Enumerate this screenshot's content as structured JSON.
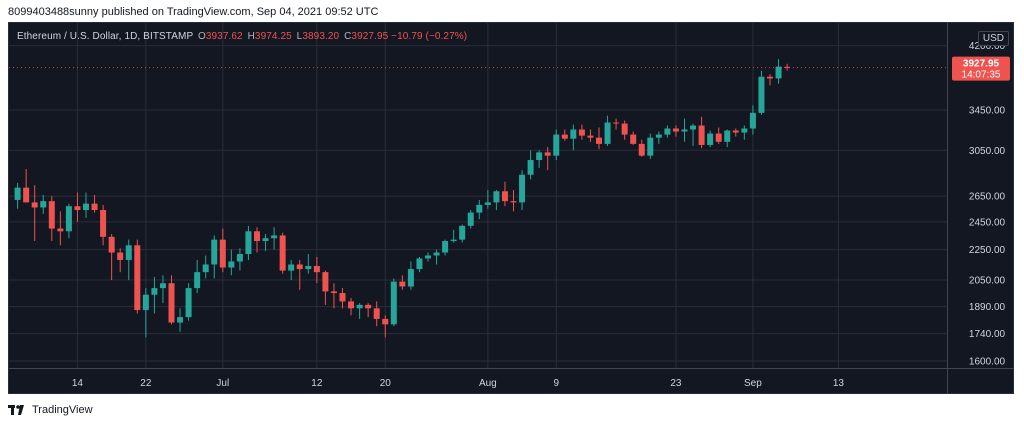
{
  "header": {
    "text": "8099403488sunny published on TradingView.com, Sep 04, 2021 09:52 UTC"
  },
  "legend": {
    "symbol": "Ethereum / U.S. Dollar, 1D, BITSTAMP",
    "o_label": "O",
    "o": "3937.62",
    "h_label": "H",
    "h": "3974.25",
    "l_label": "L",
    "l": "3893.20",
    "c_label": "C",
    "c": "3927.95",
    "change": "−10.79 (−0.27%)"
  },
  "currency": "USD",
  "price_tag": {
    "price": "3927.95",
    "countdown": "14:07:35"
  },
  "footer": {
    "brand": "TradingView"
  },
  "colors": {
    "up": "#26a69a",
    "down": "#ef5350",
    "background": "#131722",
    "grid": "#2a2e39",
    "text": "#d1d4dc"
  },
  "chart_data": {
    "type": "candlestick",
    "scale": "log",
    "y_ticks": [
      1600,
      1740,
      1890,
      2050,
      2250,
      2450,
      2650,
      3050,
      3450,
      4200
    ],
    "y_tick_labels": [
      "1600.00",
      "1740.00",
      "1890.00",
      "2050.00",
      "2250.00",
      "2450.00",
      "2650.00",
      "3050.00",
      "3450.00",
      "4200.00"
    ],
    "x_ticks": [
      {
        "label": "14",
        "index": 7
      },
      {
        "label": "22",
        "index": 15
      },
      {
        "label": "Jul",
        "index": 24
      },
      {
        "label": "12",
        "index": 35
      },
      {
        "label": "20",
        "index": 43
      },
      {
        "label": "Aug",
        "index": 55
      },
      {
        "label": "9",
        "index": 63
      },
      {
        "label": "23",
        "index": 77
      },
      {
        "label": "Sep",
        "index": 86
      },
      {
        "label": "13",
        "index": 96
      }
    ],
    "candles": [
      [
        2620,
        2760,
        2550,
        2720
      ],
      [
        2720,
        2880,
        2600,
        2600
      ],
      [
        2600,
        2740,
        2310,
        2560
      ],
      [
        2560,
        2660,
        2510,
        2610
      ],
      [
        2610,
        2650,
        2310,
        2400
      ],
      [
        2400,
        2530,
        2280,
        2380
      ],
      [
        2380,
        2590,
        2330,
        2570
      ],
      [
        2570,
        2680,
        2450,
        2540
      ],
      [
        2540,
        2680,
        2480,
        2590
      ],
      [
        2590,
        2660,
        2520,
        2540
      ],
      [
        2540,
        2580,
        2280,
        2340
      ],
      [
        2340,
        2360,
        2050,
        2230
      ],
      [
        2230,
        2260,
        2100,
        2180
      ],
      [
        2180,
        2320,
        2050,
        2280
      ],
      [
        2280,
        2320,
        1850,
        1870
      ],
      [
        1870,
        2000,
        1720,
        1960
      ],
      [
        1960,
        2070,
        1850,
        2000
      ],
      [
        2000,
        2080,
        1910,
        2030
      ],
      [
        2030,
        2080,
        1790,
        1800
      ],
      [
        1800,
        1880,
        1750,
        1830
      ],
      [
        1830,
        2030,
        1810,
        2000
      ],
      [
        2000,
        2180,
        1970,
        2100
      ],
      [
        2100,
        2210,
        2060,
        2150
      ],
      [
        2150,
        2350,
        2060,
        2320
      ],
      [
        2320,
        2400,
        2100,
        2130
      ],
      [
        2130,
        2250,
        2080,
        2170
      ],
      [
        2170,
        2260,
        2110,
        2220
      ],
      [
        2220,
        2420,
        2180,
        2380
      ],
      [
        2380,
        2410,
        2230,
        2310
      ],
      [
        2310,
        2360,
        2240,
        2330
      ],
      [
        2330,
        2410,
        2250,
        2350
      ],
      [
        2350,
        2370,
        2090,
        2110
      ],
      [
        2110,
        2180,
        2050,
        2150
      ],
      [
        2150,
        2180,
        1990,
        2120
      ],
      [
        2120,
        2220,
        2090,
        2140
      ],
      [
        2140,
        2200,
        2030,
        2100
      ],
      [
        2100,
        2110,
        1900,
        1980
      ],
      [
        1980,
        2030,
        1880,
        1970
      ],
      [
        1970,
        2000,
        1880,
        1920
      ],
      [
        1920,
        1940,
        1840,
        1880
      ],
      [
        1880,
        1910,
        1820,
        1900
      ],
      [
        1900,
        1910,
        1830,
        1880
      ],
      [
        1880,
        1920,
        1780,
        1820
      ],
      [
        1820,
        1840,
        1720,
        1790
      ],
      [
        1790,
        2060,
        1780,
        2040
      ],
      [
        2040,
        2080,
        1990,
        2010
      ],
      [
        2010,
        2170,
        1990,
        2120
      ],
      [
        2120,
        2200,
        2100,
        2190
      ],
      [
        2190,
        2230,
        2170,
        2210
      ],
      [
        2210,
        2250,
        2150,
        2230
      ],
      [
        2230,
        2320,
        2210,
        2310
      ],
      [
        2310,
        2390,
        2300,
        2320
      ],
      [
        2320,
        2430,
        2300,
        2420
      ],
      [
        2420,
        2540,
        2400,
        2520
      ],
      [
        2520,
        2620,
        2470,
        2580
      ],
      [
        2580,
        2700,
        2550,
        2600
      ],
      [
        2600,
        2700,
        2540,
        2690
      ],
      [
        2690,
        2770,
        2570,
        2610
      ],
      [
        2610,
        2700,
        2530,
        2600
      ],
      [
        2600,
        2870,
        2540,
        2830
      ],
      [
        2830,
        3050,
        2790,
        2960
      ],
      [
        2960,
        3050,
        2890,
        3030
      ],
      [
        3030,
        3080,
        2870,
        3000
      ],
      [
        3000,
        3250,
        2960,
        3200
      ],
      [
        3200,
        3250,
        3140,
        3160
      ],
      [
        3160,
        3300,
        3050,
        3250
      ],
      [
        3250,
        3300,
        3150,
        3190
      ],
      [
        3190,
        3250,
        3130,
        3170
      ],
      [
        3170,
        3270,
        3060,
        3110
      ],
      [
        3110,
        3390,
        3090,
        3320
      ],
      [
        3320,
        3360,
        3250,
        3310
      ],
      [
        3310,
        3340,
        3150,
        3200
      ],
      [
        3200,
        3230,
        3100,
        3110
      ],
      [
        3110,
        3150,
        2990,
        3000
      ],
      [
        3000,
        3210,
        2970,
        3170
      ],
      [
        3170,
        3230,
        3110,
        3200
      ],
      [
        3200,
        3290,
        3170,
        3260
      ],
      [
        3260,
        3290,
        3180,
        3230
      ],
      [
        3230,
        3360,
        3130,
        3250
      ],
      [
        3250,
        3310,
        3090,
        3290
      ],
      [
        3290,
        3380,
        3070,
        3100
      ],
      [
        3100,
        3240,
        3080,
        3210
      ],
      [
        3210,
        3270,
        3110,
        3130
      ],
      [
        3130,
        3250,
        3080,
        3240
      ],
      [
        3240,
        3260,
        3180,
        3220
      ],
      [
        3220,
        3290,
        3150,
        3260
      ],
      [
        3260,
        3500,
        3200,
        3420
      ],
      [
        3420,
        3890,
        3400,
        3820
      ],
      [
        3820,
        3850,
        3720,
        3800
      ],
      [
        3800,
        4030,
        3740,
        3940
      ],
      [
        3937.62,
        3974.25,
        3893.2,
        3927.95
      ]
    ]
  }
}
